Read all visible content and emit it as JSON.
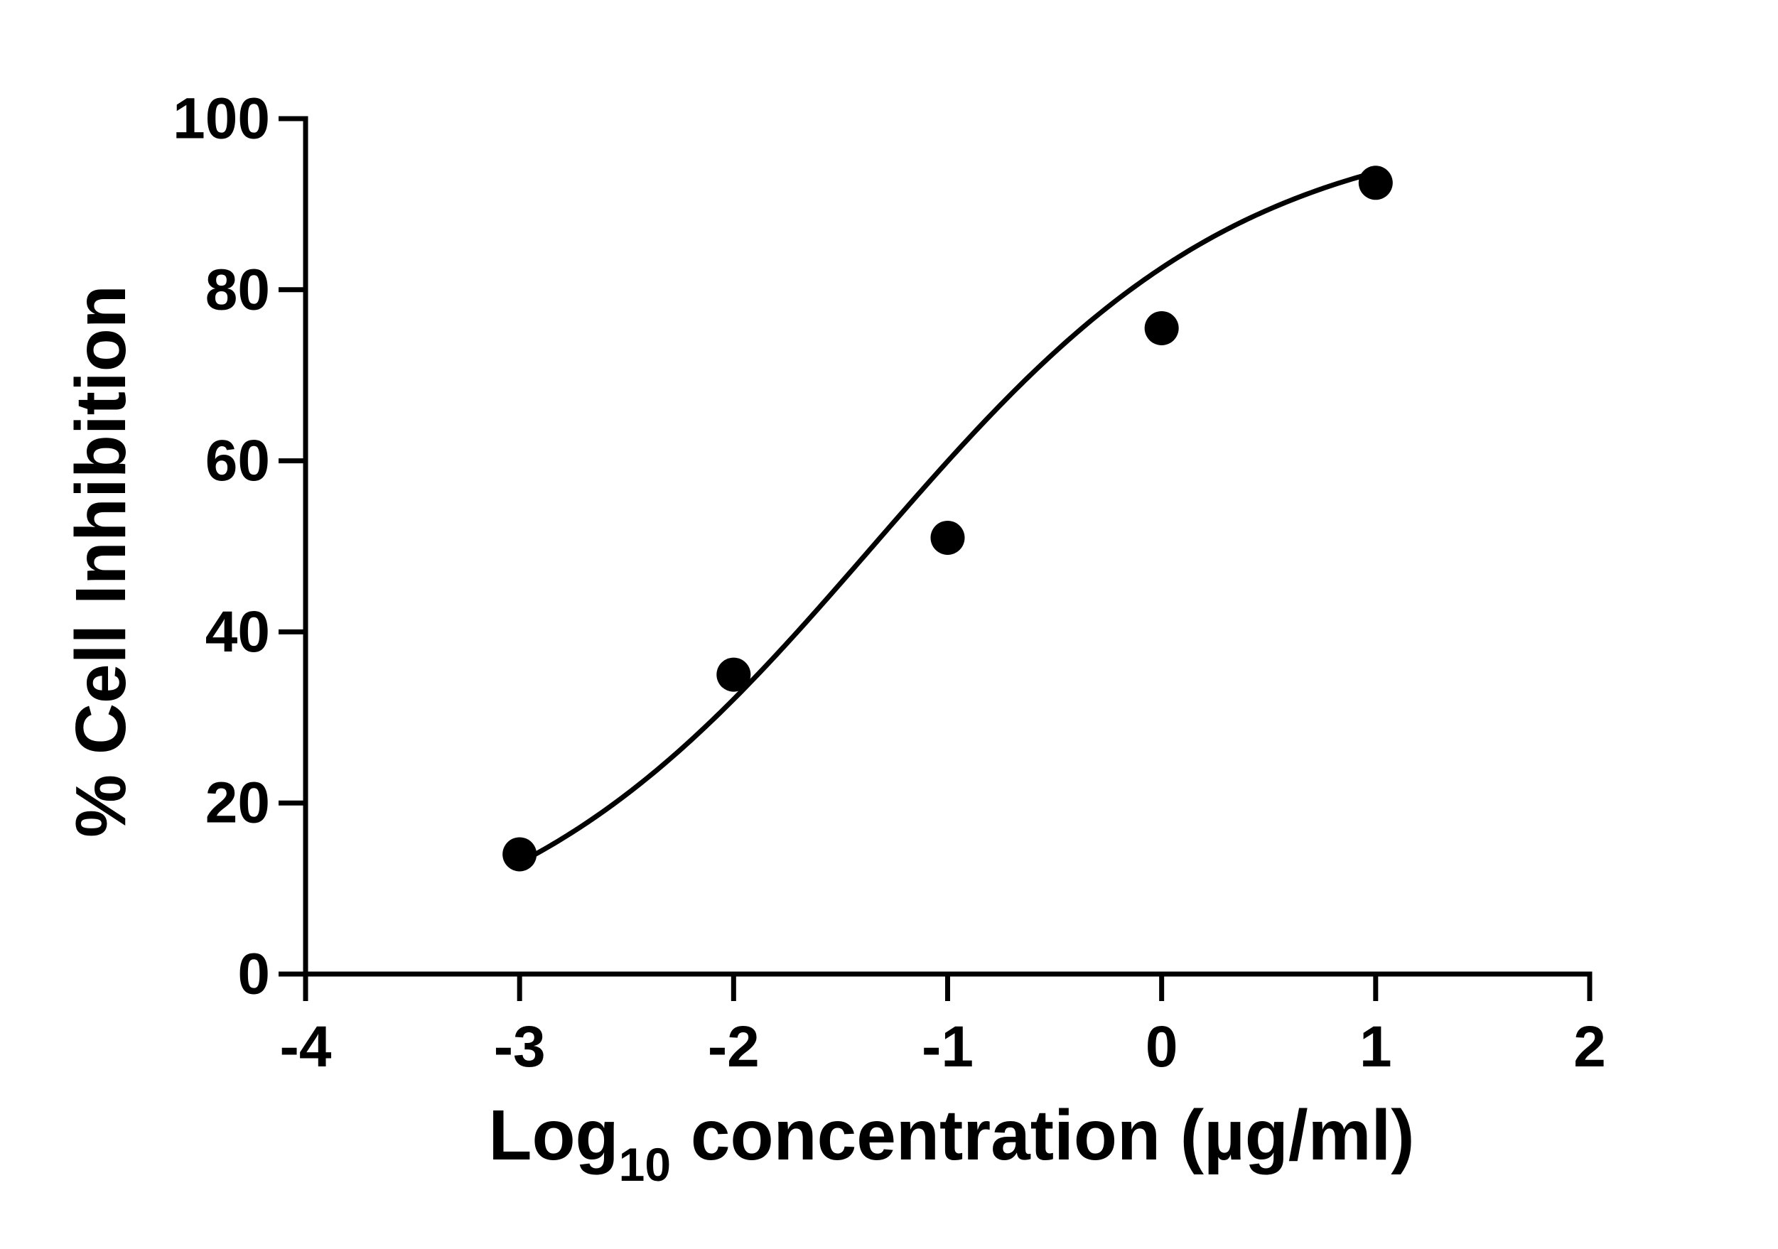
{
  "chart_data": {
    "type": "scatter",
    "title": "",
    "xlabel": {
      "prefix": "Log",
      "subscript": "10",
      "suffix": " concentration (µg/ml)"
    },
    "ylabel": "% Cell Inhibition",
    "xlim": [
      -4,
      2
    ],
    "ylim": [
      0,
      100
    ],
    "x_ticks": [
      "-4",
      "-3",
      "-2",
      "-1",
      "0",
      "1",
      "2"
    ],
    "y_ticks": [
      "0",
      "20",
      "40",
      "60",
      "80",
      "100"
    ],
    "grid": false,
    "legend": "none",
    "points": [
      {
        "x": -3,
        "y": 14
      },
      {
        "x": -2,
        "y": 35
      },
      {
        "x": -1,
        "y": 51
      },
      {
        "x": 0,
        "y": 75.5
      },
      {
        "x": 1,
        "y": 92.5
      }
    ],
    "fit_curve": {
      "model": "sigmoidal dose-response",
      "x_range": [
        -3,
        1
      ],
      "bottom": 0,
      "top": 100,
      "logEC50": -1.35,
      "hill_slope": 0.5
    },
    "colors": {
      "axis": "#000000",
      "marker": "#000000",
      "curve": "#000000"
    }
  }
}
